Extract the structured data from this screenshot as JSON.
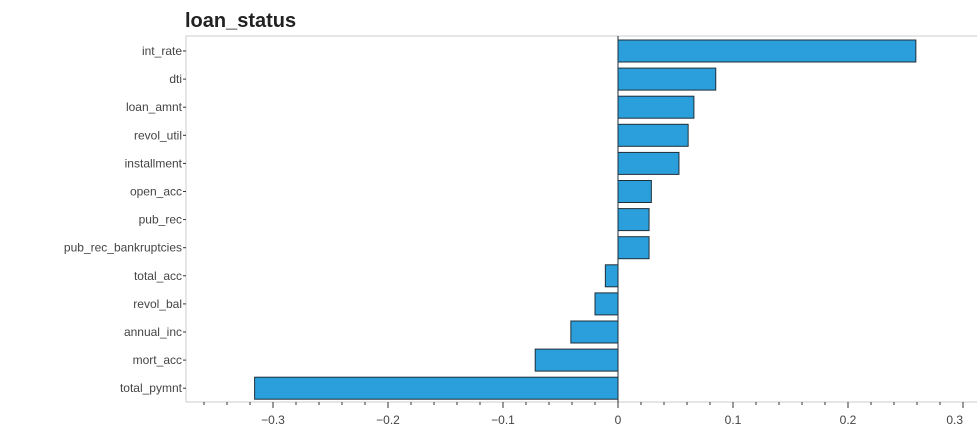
{
  "chart_data": {
    "type": "bar",
    "orientation": "horizontal",
    "title": "loan_status",
    "xlabel": "",
    "ylabel": "",
    "categories": [
      "int_rate",
      "dti",
      "loan_amnt",
      "revol_util",
      "installment",
      "open_acc",
      "pub_rec",
      "pub_rec_bankruptcies",
      "total_acc",
      "revol_bal",
      "annual_inc",
      "mort_acc",
      "total_pymnt"
    ],
    "values": [
      0.259,
      0.085,
      0.066,
      0.061,
      0.053,
      0.029,
      0.027,
      0.027,
      -0.011,
      -0.02,
      -0.041,
      -0.072,
      -0.316
    ],
    "xlim": [
      -0.37,
      0.3
    ],
    "xticks": [
      -0.3,
      -0.2,
      -0.1,
      0,
      0.1,
      0.2,
      0.3
    ],
    "xtick_labels": [
      "−0.3",
      "−0.2",
      "−0.1",
      "0",
      "0.1",
      "0.2",
      "0.3"
    ],
    "grid": false,
    "colors": {
      "bar": "#2b9fdb",
      "bar_edge": "#1f2f3a",
      "axis": "#cccccc",
      "ticks": "#333333"
    }
  }
}
